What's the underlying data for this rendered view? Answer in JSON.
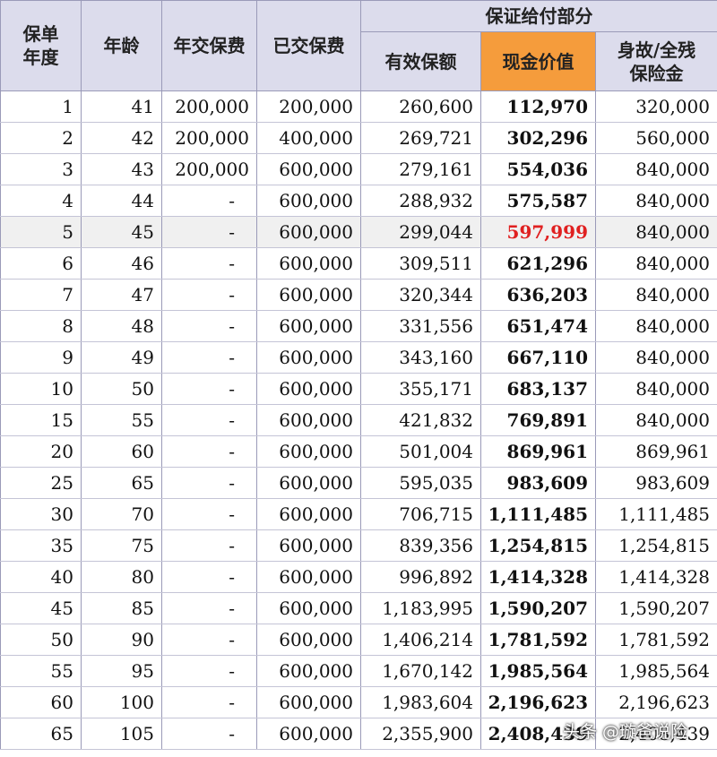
{
  "headers": {
    "policy_year": "保单\n年度",
    "age": "年龄",
    "annual_premium": "年交保费",
    "paid_premium": "已交保费",
    "guaranteed_group": "保证给付部分",
    "effective_sum": "有效保额",
    "cash_value": "现金价值",
    "death_benefit": "身故/全残\n保险金"
  },
  "colors": {
    "header_bg": "#dcdcec",
    "cash_value_header_bg": "#f59c3c",
    "highlight_text": "#e02020",
    "alt_row_bg": "#f0f0f0"
  },
  "rows": [
    {
      "year": "1",
      "age": "41",
      "annual": "200,000",
      "paid": "200,000",
      "sum": "260,600",
      "cash": "112,970",
      "death": "320,000"
    },
    {
      "year": "2",
      "age": "42",
      "annual": "200,000",
      "paid": "400,000",
      "sum": "269,721",
      "cash": "302,296",
      "death": "560,000"
    },
    {
      "year": "3",
      "age": "43",
      "annual": "200,000",
      "paid": "600,000",
      "sum": "279,161",
      "cash": "554,036",
      "death": "840,000"
    },
    {
      "year": "4",
      "age": "44",
      "annual": "-",
      "paid": "600,000",
      "sum": "288,932",
      "cash": "575,587",
      "death": "840,000"
    },
    {
      "year": "5",
      "age": "45",
      "annual": "-",
      "paid": "600,000",
      "sum": "299,044",
      "cash": "597,999",
      "death": "840,000",
      "highlight": true
    },
    {
      "year": "6",
      "age": "46",
      "annual": "-",
      "paid": "600,000",
      "sum": "309,511",
      "cash": "621,296",
      "death": "840,000"
    },
    {
      "year": "7",
      "age": "47",
      "annual": "-",
      "paid": "600,000",
      "sum": "320,344",
      "cash": "636,203",
      "death": "840,000"
    },
    {
      "year": "8",
      "age": "48",
      "annual": "-",
      "paid": "600,000",
      "sum": "331,556",
      "cash": "651,474",
      "death": "840,000"
    },
    {
      "year": "9",
      "age": "49",
      "annual": "-",
      "paid": "600,000",
      "sum": "343,160",
      "cash": "667,110",
      "death": "840,000"
    },
    {
      "year": "10",
      "age": "50",
      "annual": "-",
      "paid": "600,000",
      "sum": "355,171",
      "cash": "683,137",
      "death": "840,000"
    },
    {
      "year": "15",
      "age": "55",
      "annual": "-",
      "paid": "600,000",
      "sum": "421,832",
      "cash": "769,891",
      "death": "840,000"
    },
    {
      "year": "20",
      "age": "60",
      "annual": "-",
      "paid": "600,000",
      "sum": "501,004",
      "cash": "869,961",
      "death": "869,961"
    },
    {
      "year": "25",
      "age": "65",
      "annual": "-",
      "paid": "600,000",
      "sum": "595,035",
      "cash": "983,609",
      "death": "983,609"
    },
    {
      "year": "30",
      "age": "70",
      "annual": "-",
      "paid": "600,000",
      "sum": "706,715",
      "cash": "1,111,485",
      "death": "1,111,485"
    },
    {
      "year": "35",
      "age": "75",
      "annual": "-",
      "paid": "600,000",
      "sum": "839,356",
      "cash": "1,254,815",
      "death": "1,254,815"
    },
    {
      "year": "40",
      "age": "80",
      "annual": "-",
      "paid": "600,000",
      "sum": "996,892",
      "cash": "1,414,328",
      "death": "1,414,328"
    },
    {
      "year": "45",
      "age": "85",
      "annual": "-",
      "paid": "600,000",
      "sum": "1,183,995",
      "cash": "1,590,207",
      "death": "1,590,207"
    },
    {
      "year": "50",
      "age": "90",
      "annual": "-",
      "paid": "600,000",
      "sum": "1,406,214",
      "cash": "1,781,592",
      "death": "1,781,592"
    },
    {
      "year": "55",
      "age": "95",
      "annual": "-",
      "paid": "600,000",
      "sum": "1,670,142",
      "cash": "1,985,564",
      "death": "1,985,564"
    },
    {
      "year": "60",
      "age": "100",
      "annual": "-",
      "paid": "600,000",
      "sum": "1,983,604",
      "cash": "2,196,623",
      "death": "2,196,623"
    },
    {
      "year": "65",
      "age": "105",
      "annual": "-",
      "paid": "600,000",
      "sum": "2,355,900",
      "cash": "2,408,439",
      "death": "2,408,439"
    }
  ],
  "watermark": "头条 @璇爸说险"
}
